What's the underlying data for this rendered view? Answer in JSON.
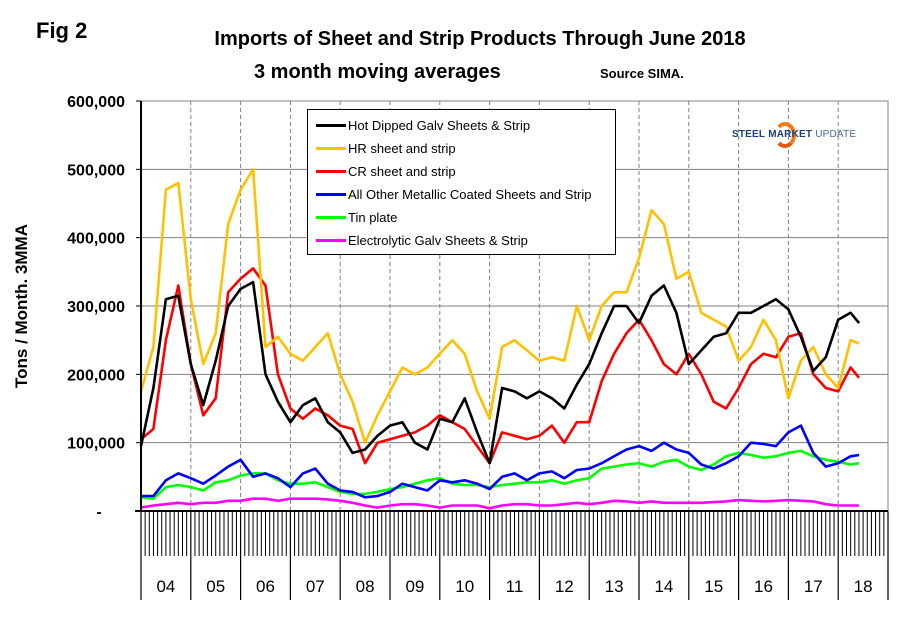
{
  "figure": {
    "fig_label": "Fig 2",
    "title": "Imports of Sheet and Strip Products Through June 2018",
    "subtitle": "3 month moving averages",
    "source": "Source SIMA.",
    "logo": {
      "word1": "STEEL",
      "word2": "MARKET",
      "word3": "UPDATE"
    }
  },
  "chart_data": {
    "type": "line",
    "title": "Imports of Sheet and Strip Products Through June 2018",
    "subtitle": "3 month moving averages",
    "xlabel": "",
    "ylabel": "Tons / Month. 3MMA",
    "ylim": [
      0,
      600000
    ],
    "yticks": [
      0,
      100000,
      200000,
      300000,
      400000,
      500000,
      600000
    ],
    "ytick_labels": [
      "-",
      "100,000",
      "200,000",
      "300,000",
      "400,000",
      "500,000",
      "600,000"
    ],
    "xlim": [
      2004.0,
      2019.0
    ],
    "categories": [
      "04",
      "05",
      "06",
      "07",
      "08",
      "09",
      "10",
      "11",
      "12",
      "13",
      "14",
      "15",
      "16",
      "17",
      "18"
    ],
    "grid": "horizontal solid gridlines, vertical dashed gridlines at year boundaries",
    "legend_position": "top-center",
    "x_note": "x = fractional year, monthly axis ticks, quarterly sampled approximations",
    "x": [
      2004.0,
      2004.25,
      2004.5,
      2004.75,
      2005.0,
      2005.25,
      2005.5,
      2005.75,
      2006.0,
      2006.25,
      2006.5,
      2006.75,
      2007.0,
      2007.25,
      2007.5,
      2007.75,
      2008.0,
      2008.25,
      2008.5,
      2008.75,
      2009.0,
      2009.25,
      2009.5,
      2009.75,
      2010.0,
      2010.25,
      2010.5,
      2010.75,
      2011.0,
      2011.25,
      2011.5,
      2011.75,
      2012.0,
      2012.25,
      2012.5,
      2012.75,
      2013.0,
      2013.25,
      2013.5,
      2013.75,
      2014.0,
      2014.25,
      2014.5,
      2014.75,
      2015.0,
      2015.25,
      2015.5,
      2015.75,
      2016.0,
      2016.25,
      2016.5,
      2016.75,
      2017.0,
      2017.25,
      2017.5,
      2017.75,
      2018.0,
      2018.25,
      2018.42
    ],
    "series": [
      {
        "name": "Hot Dipped Galv Sheets & Strip",
        "color": "#000000",
        "values": [
          95000,
          180000,
          310000,
          315000,
          215000,
          155000,
          220000,
          300000,
          325000,
          335000,
          200000,
          160000,
          130000,
          155000,
          165000,
          130000,
          115000,
          85000,
          90000,
          110000,
          125000,
          130000,
          100000,
          90000,
          135000,
          130000,
          165000,
          115000,
          70000,
          180000,
          175000,
          165000,
          175000,
          165000,
          150000,
          185000,
          215000,
          260000,
          300000,
          300000,
          275000,
          315000,
          330000,
          290000,
          215000,
          235000,
          255000,
          260000,
          290000,
          290000,
          300000,
          310000,
          295000,
          255000,
          205000,
          225000,
          280000,
          290000,
          275000
        ]
      },
      {
        "name": "HR sheet and strip",
        "color": "#ffc000",
        "values": [
          175000,
          240000,
          470000,
          480000,
          310000,
          215000,
          260000,
          420000,
          470000,
          500000,
          240000,
          255000,
          230000,
          220000,
          240000,
          260000,
          200000,
          160000,
          100000,
          140000,
          175000,
          210000,
          200000,
          210000,
          230000,
          250000,
          230000,
          175000,
          135000,
          240000,
          250000,
          235000,
          220000,
          225000,
          220000,
          300000,
          250000,
          300000,
          320000,
          320000,
          370000,
          440000,
          420000,
          340000,
          350000,
          290000,
          280000,
          270000,
          220000,
          240000,
          280000,
          250000,
          165000,
          220000,
          240000,
          200000,
          180000,
          250000,
          245000
        ]
      },
      {
        "name": "CR sheet and strip",
        "color": "#ff0000",
        "values": [
          105000,
          120000,
          250000,
          330000,
          215000,
          140000,
          165000,
          320000,
          340000,
          355000,
          330000,
          200000,
          150000,
          135000,
          150000,
          140000,
          125000,
          120000,
          70000,
          100000,
          105000,
          110000,
          115000,
          125000,
          140000,
          130000,
          120000,
          95000,
          70000,
          115000,
          110000,
          105000,
          110000,
          125000,
          100000,
          130000,
          130000,
          190000,
          230000,
          260000,
          280000,
          250000,
          215000,
          200000,
          230000,
          200000,
          160000,
          150000,
          180000,
          215000,
          230000,
          225000,
          255000,
          260000,
          200000,
          180000,
          175000,
          210000,
          195000
        ]
      },
      {
        "name": "All Other Metallic Coated Sheets and Strip",
        "color": "#0000ff",
        "values": [
          22000,
          22000,
          45000,
          55000,
          48000,
          40000,
          52000,
          65000,
          75000,
          50000,
          55000,
          48000,
          35000,
          55000,
          62000,
          40000,
          30000,
          28000,
          20000,
          22000,
          28000,
          40000,
          35000,
          30000,
          45000,
          42000,
          45000,
          40000,
          32000,
          50000,
          55000,
          45000,
          55000,
          58000,
          48000,
          60000,
          62000,
          70000,
          80000,
          90000,
          95000,
          88000,
          100000,
          90000,
          85000,
          68000,
          62000,
          70000,
          80000,
          100000,
          98000,
          95000,
          115000,
          125000,
          85000,
          65000,
          70000,
          80000,
          82000
        ]
      },
      {
        "name": "Tin plate",
        "color": "#00ff00",
        "values": [
          20000,
          18000,
          35000,
          38000,
          35000,
          30000,
          42000,
          45000,
          52000,
          55000,
          55000,
          45000,
          40000,
          40000,
          42000,
          35000,
          28000,
          25000,
          25000,
          28000,
          32000,
          35000,
          40000,
          45000,
          48000,
          40000,
          38000,
          38000,
          35000,
          38000,
          40000,
          42000,
          42000,
          45000,
          40000,
          45000,
          48000,
          62000,
          65000,
          68000,
          70000,
          65000,
          72000,
          75000,
          65000,
          60000,
          68000,
          80000,
          85000,
          82000,
          78000,
          80000,
          85000,
          88000,
          80000,
          75000,
          72000,
          68000,
          70000
        ]
      },
      {
        "name": "Electrolytic Galv Sheets & Strip",
        "color": "#ff00ff",
        "values": [
          5000,
          8000,
          10000,
          12000,
          10000,
          12000,
          12000,
          15000,
          15000,
          18000,
          18000,
          15000,
          18000,
          18000,
          18000,
          17000,
          15000,
          12000,
          8000,
          5000,
          8000,
          10000,
          10000,
          8000,
          5000,
          8000,
          8000,
          8000,
          4000,
          8000,
          10000,
          10000,
          8000,
          8000,
          10000,
          12000,
          10000,
          12000,
          15000,
          14000,
          12000,
          14000,
          12000,
          12000,
          12000,
          12000,
          13000,
          14000,
          16000,
          15000,
          14000,
          15000,
          16000,
          15000,
          14000,
          10000,
          8000,
          8000,
          8000
        ]
      }
    ]
  }
}
